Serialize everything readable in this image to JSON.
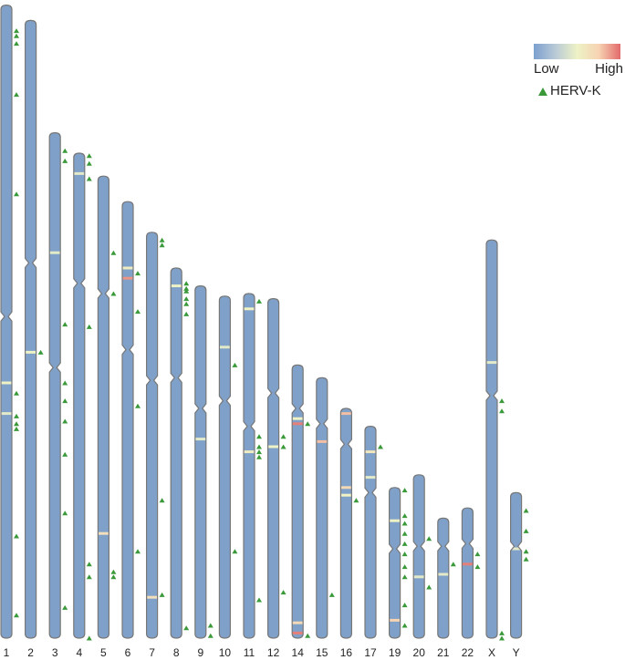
{
  "chart_data": {
    "type": "ideogram",
    "colorscale": [
      "#7b9fcf",
      "#b9cad6",
      "#eef2c6",
      "#f6d3b3",
      "#e36a6a"
    ],
    "body_color": "#7fa0c8",
    "marker_color": "#3a9a3a",
    "legend": {
      "low": "Low",
      "high": "High",
      "marker": "HERV-K"
    },
    "chromosomes": [
      {
        "name": "1",
        "length": 248,
        "centromere": 122,
        "herv": [
          10,
          12,
          15,
          35,
          74,
          152,
          161,
          164,
          166,
          208,
          239
        ],
        "bands": [
          {
            "position": 148,
            "level": 0.5
          },
          {
            "position": 160,
            "level": 0.45
          }
        ]
      },
      {
        "name": "2",
        "length": 242,
        "centromere": 95,
        "herv": [
          130
        ],
        "bands": [
          {
            "position": 130,
            "level": 0.5
          }
        ]
      },
      {
        "name": "3",
        "length": 198,
        "centromere": 92,
        "herv": [
          7,
          11,
          75,
          98,
          105,
          113,
          126,
          149,
          186
        ],
        "bands": [
          {
            "position": 47,
            "level": 0.45
          }
        ]
      },
      {
        "name": "4",
        "length": 190,
        "centromere": 51,
        "herv": [
          1,
          4,
          10,
          68,
          161,
          166,
          190
        ],
        "bands": [
          {
            "position": 8,
            "level": 0.45
          }
        ]
      },
      {
        "name": "5",
        "length": 181,
        "centromere": 46,
        "herv": [
          30,
          46,
          155,
          157
        ],
        "bands": [
          {
            "position": 140,
            "level": 0.65
          }
        ]
      },
      {
        "name": "6",
        "length": 171,
        "centromere": 58,
        "herv": [
          28,
          43,
          80,
          137
        ],
        "bands": [
          {
            "position": 26,
            "level": 0.55
          },
          {
            "position": 30,
            "level": 0.9
          }
        ]
      },
      {
        "name": "7",
        "length": 159,
        "centromere": 58,
        "herv": [
          3,
          5,
          105,
          142
        ],
        "bands": [
          {
            "position": 143,
            "level": 0.65
          }
        ]
      },
      {
        "name": "8",
        "length": 145,
        "centromere": 43,
        "herv": [
          6,
          8,
          9,
          12,
          14,
          18,
          141
        ],
        "bands": [
          {
            "position": 7,
            "level": 0.5
          }
        ]
      },
      {
        "name": "9",
        "length": 138,
        "centromere": 48,
        "herv": [
          133,
          137
        ],
        "bands": [
          {
            "position": 60,
            "level": 0.45
          }
        ]
      },
      {
        "name": "10",
        "length": 134,
        "centromere": 41,
        "herv": [
          27,
          100
        ],
        "bands": [
          {
            "position": 20,
            "level": 0.45
          }
        ]
      },
      {
        "name": "11",
        "length": 135,
        "centromere": 52,
        "herv": [
          3,
          56,
          60,
          62,
          64,
          120
        ],
        "bands": [
          {
            "position": 6,
            "level": 0.5
          },
          {
            "position": 62,
            "level": 0.55
          }
        ]
      },
      {
        "name": "12",
        "length": 133,
        "centromere": 37,
        "herv": [
          54,
          58,
          115
        ],
        "bands": [
          {
            "position": 58,
            "level": 0.5
          }
        ]
      },
      {
        "name": "14",
        "length": 107,
        "centromere": 17,
        "herv": [
          23,
          106
        ],
        "bands": [
          {
            "position": 21,
            "level": 0.5
          },
          {
            "position": 23,
            "level": 0.95
          },
          {
            "position": 101,
            "level": 0.7
          },
          {
            "position": 105,
            "level": 0.95
          }
        ]
      },
      {
        "name": "15",
        "length": 102,
        "centromere": 18,
        "herv": [
          85
        ],
        "bands": [
          {
            "position": 25,
            "level": 0.8
          }
        ]
      },
      {
        "name": "16",
        "length": 90,
        "centromere": 14,
        "herv": [
          36
        ],
        "bands": [
          {
            "position": 2,
            "level": 0.8
          },
          {
            "position": 31,
            "level": 0.7
          },
          {
            "position": 34,
            "level": 0.5
          }
        ]
      },
      {
        "name": "17",
        "length": 83,
        "centromere": 26,
        "herv": [
          8
        ],
        "bands": [
          {
            "position": 10,
            "level": 0.6
          },
          {
            "position": 20,
            "level": 0.45
          }
        ]
      },
      {
        "name": "19",
        "length": 59,
        "centromere": 24,
        "herv": [
          1,
          11,
          14,
          18,
          22,
          26,
          31,
          35,
          46,
          54
        ],
        "bands": [
          {
            "position": 13,
            "level": 0.5
          },
          {
            "position": 52,
            "level": 0.75
          }
        ]
      },
      {
        "name": "20",
        "length": 64,
        "centromere": 28,
        "herv": [
          25,
          44
        ],
        "bands": [
          {
            "position": 40,
            "level": 0.45
          }
        ]
      },
      {
        "name": "21",
        "length": 47,
        "centromere": 11,
        "herv": [
          18
        ],
        "bands": [
          {
            "position": 22,
            "level": 0.45
          }
        ]
      },
      {
        "name": "22",
        "length": 51,
        "centromere": 14,
        "herv": [
          18,
          23
        ],
        "bands": [
          {
            "position": 22,
            "level": 0.95
          }
        ]
      },
      {
        "name": "X",
        "length": 156,
        "centromere": 61,
        "herv": [
          63,
          67,
          154,
          156
        ],
        "bands": [
          {
            "position": 48,
            "level": 0.45
          }
        ]
      },
      {
        "name": "Y",
        "length": 57,
        "centromere": 21,
        "herv": [
          7,
          15,
          23,
          26
        ],
        "bands": [
          {
            "position": 22,
            "level": 0.45
          }
        ]
      }
    ]
  }
}
